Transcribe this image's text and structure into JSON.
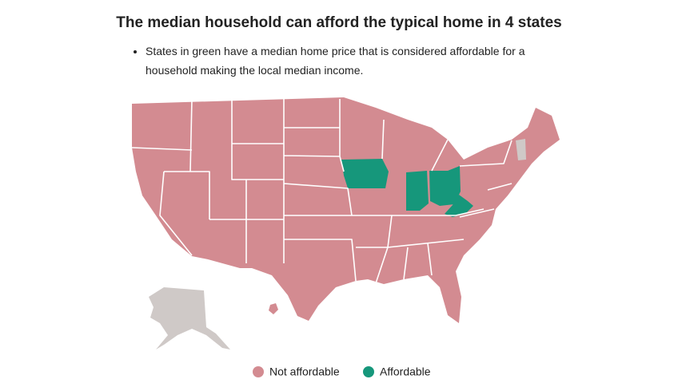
{
  "title": "The median household can afford the typical home in 4 states",
  "note": "States in green have a median home price that is considered affordable for a household making the local median income.",
  "legend": [
    {
      "label": "Not affordable",
      "color": "#d38b91"
    },
    {
      "label": "Affordable",
      "color": "#16977b"
    }
  ]
}
